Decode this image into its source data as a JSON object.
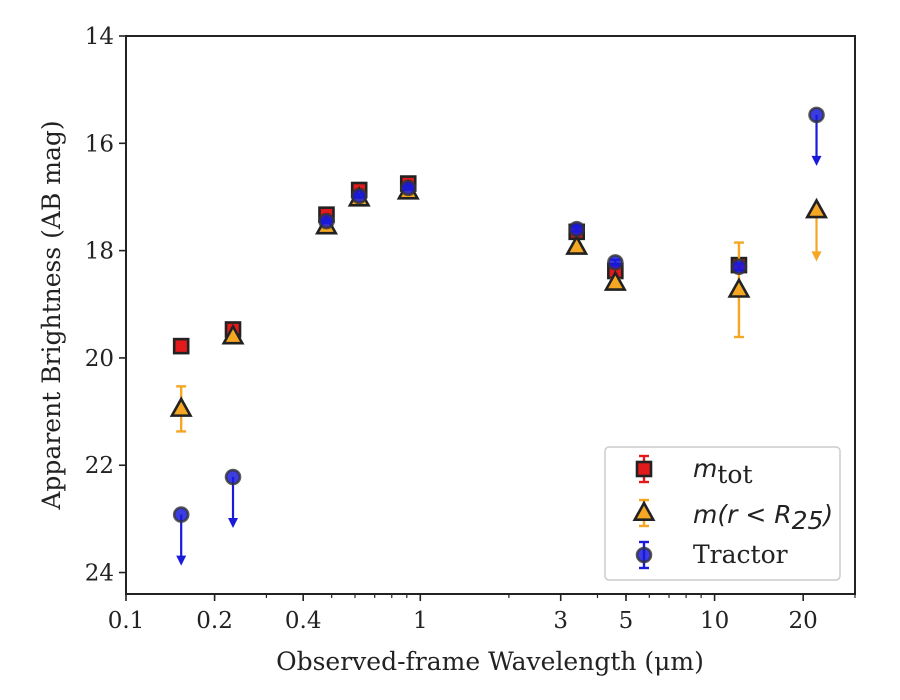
{
  "chart_data": {
    "type": "scatter",
    "xlabel": "Observed-frame Wavelength (μm)",
    "ylabel": "Apparent Brightness (AB mag)",
    "xscale": "log",
    "xlim": [
      0.1,
      30
    ],
    "ylim": [
      24.4,
      14
    ],
    "y_inverted": true,
    "grid": false,
    "legend_position": "lower-right",
    "x_ticks": [
      {
        "value": 0.1,
        "label": "0.1"
      },
      {
        "value": 0.2,
        "label": "0.2"
      },
      {
        "value": 0.4,
        "label": "0.4"
      },
      {
        "value": 1,
        "label": "1"
      },
      {
        "value": 3,
        "label": "3"
      },
      {
        "value": 5,
        "label": "5"
      },
      {
        "value": 10,
        "label": "10"
      },
      {
        "value": 20,
        "label": "20"
      }
    ],
    "y_ticks": [
      {
        "value": 14,
        "label": "14"
      },
      {
        "value": 16,
        "label": "16"
      },
      {
        "value": 18,
        "label": "18"
      },
      {
        "value": 20,
        "label": "20"
      },
      {
        "value": 22,
        "label": "22"
      },
      {
        "value": 24,
        "label": "24"
      }
    ],
    "series": [
      {
        "name": "m_tot",
        "marker": "square",
        "color": "#e31a1c",
        "edge_color": "#222222",
        "points": [
          {
            "x": 0.154,
            "y": 19.78,
            "err": 0.08
          },
          {
            "x": 0.231,
            "y": 19.47,
            "err": 0.06
          },
          {
            "x": 0.48,
            "y": 17.33,
            "err": 0.04
          },
          {
            "x": 0.62,
            "y": 16.87,
            "err": 0.04
          },
          {
            "x": 0.91,
            "y": 16.75,
            "err": 0.04
          },
          {
            "x": 3.4,
            "y": 17.65,
            "err": 0.05
          },
          {
            "x": 4.6,
            "y": 18.38,
            "err": 0.06
          },
          {
            "x": 12.1,
            "y": 18.27,
            "err": 0.08
          }
        ]
      },
      {
        "name": "m(r < R25)",
        "marker": "triangle",
        "color": "#f5a623",
        "edge_color": "#222222",
        "points": [
          {
            "x": 0.154,
            "y": 20.95,
            "err": 0.42
          },
          {
            "x": 0.231,
            "y": 19.6,
            "err": 0.06
          },
          {
            "x": 0.48,
            "y": 17.55,
            "err": 0.04
          },
          {
            "x": 0.62,
            "y": 17.03,
            "err": 0.04
          },
          {
            "x": 0.91,
            "y": 16.9,
            "err": 0.04
          },
          {
            "x": 3.4,
            "y": 17.93,
            "err": 0.06
          },
          {
            "x": 4.6,
            "y": 18.6,
            "err": 0.07
          },
          {
            "x": 12.1,
            "y": 18.73,
            "err": 0.88
          },
          {
            "x": 22.2,
            "y": 17.25,
            "upper_limit": true
          }
        ]
      },
      {
        "name": "Tractor",
        "marker": "circle",
        "color": "#1a1adb",
        "edge_color": "#333333",
        "points": [
          {
            "x": 0.154,
            "y": 22.92,
            "upper_limit": true
          },
          {
            "x": 0.231,
            "y": 22.22,
            "upper_limit": true
          },
          {
            "x": 0.48,
            "y": 17.45,
            "err": 0.03
          },
          {
            "x": 0.62,
            "y": 16.98,
            "err": 0.03
          },
          {
            "x": 0.91,
            "y": 16.83,
            "err": 0.03
          },
          {
            "x": 3.4,
            "y": 17.6,
            "err": 0.04
          },
          {
            "x": 4.6,
            "y": 18.22,
            "err": 0.05
          },
          {
            "x": 12.1,
            "y": 18.3,
            "err": 0.06
          },
          {
            "x": 22.2,
            "y": 15.47,
            "upper_limit": true
          }
        ]
      }
    ]
  },
  "legend": {
    "items": [
      {
        "base": "m",
        "sub": "tot",
        "plain": ""
      },
      {
        "base": "m(r < R",
        "sub": "25",
        "close": ")"
      },
      {
        "plain": "Tractor"
      }
    ]
  }
}
